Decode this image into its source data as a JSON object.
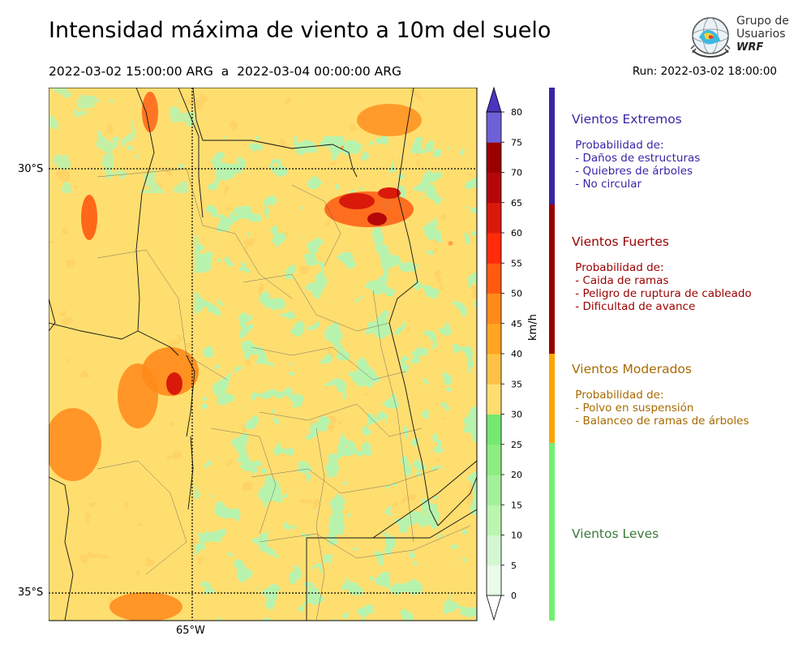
{
  "title": "Intensidad máxima de viento a 10m del suelo",
  "period": "2022-03-02 15:00:00 ARG  a  2022-03-04 00:00:00 ARG",
  "run": "Run: 2022-03-02 18:00:00",
  "logo": {
    "line1": "Grupo de",
    "line2": "Usuarios",
    "line3": "WRF"
  },
  "map": {
    "lat_labels": [
      "30°S",
      "35°S"
    ],
    "lon_labels": [
      "65°W"
    ]
  },
  "colorbar": {
    "unit": "km/h",
    "ticks": [
      "0",
      "5",
      "10",
      "15",
      "20",
      "25",
      "30",
      "35",
      "40",
      "45",
      "50",
      "55",
      "60",
      "65",
      "70",
      "75",
      "80"
    ],
    "colors": [
      "#eafbea",
      "#d3f7d3",
      "#bbf5b0",
      "#a3f09a",
      "#8dec82",
      "#74e870",
      "#ffde70",
      "#ffc246",
      "#ffa522",
      "#ff8a1a",
      "#ff5a10",
      "#ff2b0a",
      "#d91a0a",
      "#b5070a",
      "#9a0000",
      "#7060d8",
      "#5545cc",
      "#4a35bf"
    ]
  },
  "categories": [
    {
      "title": "Vientos Extremos",
      "color": "#3a24a6",
      "lines": [
        " Probabilidad de:",
        " - Daños de estructuras",
        " - Quiebres de árboles",
        " - No circular"
      ]
    },
    {
      "title": "Vientos Fuertes",
      "color": "#9a0000",
      "lines": [
        " Probabilidad de:",
        " - Caida de ramas",
        " - Peligro de ruptura de cableado",
        " - Dificultad de avance"
      ]
    },
    {
      "title": "Vientos Moderados",
      "color": "#a86a00",
      "lines": [
        " Probabilidad de:",
        " - Polvo en suspensión",
        " - Balanceo de ramas de árboles"
      ]
    },
    {
      "title": "Vientos Leves",
      "color": "#3a7a38",
      "lines": []
    }
  ]
}
